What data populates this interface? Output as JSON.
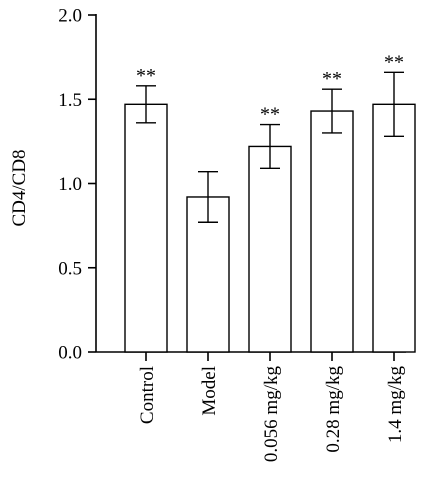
{
  "chart_data": {
    "type": "bar",
    "categories": [
      "Control",
      "Model",
      "0.056 mg/kg",
      "0.28 mg/kg",
      "1.4 mg/kg"
    ],
    "values": [
      1.47,
      0.92,
      1.22,
      1.43,
      1.47
    ],
    "errors": [
      0.11,
      0.15,
      0.13,
      0.13,
      0.19
    ],
    "annotations": [
      "**",
      "",
      "**",
      "**",
      "**"
    ],
    "title": "",
    "xlabel": "",
    "ylabel": "CD4/CD8",
    "ylim": [
      0,
      2.0
    ],
    "yticks": [
      0.0,
      0.5,
      1.0,
      1.5,
      2.0
    ],
    "ytick_labels": [
      "0.0",
      "0.5",
      "1.0",
      "1.5",
      "2.0"
    ],
    "grid": false,
    "bar_color": "#ffffff",
    "edge_color": "#000000"
  }
}
